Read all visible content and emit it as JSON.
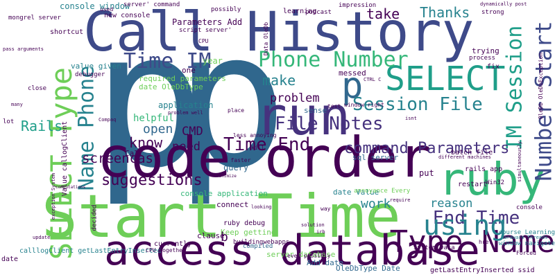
{
  "colors": {
    "background": "#ffffff"
  },
  "word_cloud": {
    "words": [
      {
        "text": "p",
        "weight": 1.0,
        "color": "#30678d"
      },
      {
        "text": "p",
        "weight": 1.0,
        "color": "#30678d"
      },
      {
        "text": "Call History",
        "weight": 0.52,
        "color": "#3e4a89"
      },
      {
        "text": "code order",
        "weight": 0.55,
        "color": "#440154"
      },
      {
        "text": "Start Time",
        "weight": 0.6,
        "color": "#6ece58"
      },
      {
        "text": "access database",
        "weight": 0.4,
        "color": "#440154"
      },
      {
        "text": "run",
        "weight": 0.5,
        "color": "#46327e"
      },
      {
        "text": "ruby",
        "weight": 0.42,
        "color": "#35b779"
      },
      {
        "text": "Type Name",
        "weight": 0.3,
        "color": "#440154"
      },
      {
        "text": "SELECT",
        "weight": 0.3,
        "color": "#1f9e89"
      },
      {
        "text": "SELECT Type",
        "weight": 0.27,
        "color": "#6ece58"
      },
      {
        "text": "Name Phone",
        "weight": 0.22,
        "color": "#26828e"
      },
      {
        "text": "Time IM",
        "weight": 0.2,
        "color": "#3e4a89"
      },
      {
        "text": "Phone Number",
        "weight": 0.2,
        "color": "#35b779"
      },
      {
        "text": "p",
        "weight": 0.28,
        "color": "#31688e"
      },
      {
        "text": "Number Start",
        "weight": 0.2,
        "color": "#3e4a89"
      },
      {
        "text": "IM Session",
        "weight": 0.18,
        "color": "#1f9e89"
      },
      {
        "text": "Session File",
        "weight": 0.17,
        "color": "#26828e"
      },
      {
        "text": "File Notes",
        "weight": 0.17,
        "color": "#46327e"
      },
      {
        "text": "Time End",
        "weight": 0.17,
        "color": "#440154"
      },
      {
        "text": "End Time",
        "weight": 0.15,
        "color": "#46327e"
      },
      {
        "text": "command Parameters",
        "weight": 0.13,
        "color": "#46327e"
      },
      {
        "text": "using",
        "weight": 0.2,
        "color": "#26828e"
      },
      {
        "text": "Rails",
        "weight": 0.12,
        "color": "#1f9e89"
      },
      {
        "text": "suggestions",
        "weight": 0.11,
        "color": "#440154"
      },
      {
        "text": "screencast",
        "weight": 0.1,
        "color": "#440154"
      },
      {
        "text": "problem",
        "weight": 0.1,
        "color": "#440154"
      },
      {
        "text": "take",
        "weight": 0.1,
        "color": "#440154"
      },
      {
        "text": "Thanks",
        "weight": 0.1,
        "color": "#26828e"
      },
      {
        "text": "make",
        "weight": 0.1,
        "color": "#26828e"
      },
      {
        "text": "know",
        "weight": 0.1,
        "color": "#440154"
      },
      {
        "text": "open",
        "weight": 0.1,
        "color": "#31688e"
      },
      {
        "text": "need",
        "weight": 0.09,
        "color": "#440154"
      },
      {
        "text": "CMD",
        "weight": 0.09,
        "color": "#440154"
      },
      {
        "text": "work",
        "weight": 0.09,
        "color": "#26828e"
      },
      {
        "text": "reason",
        "weight": 0.09,
        "color": "#26828e"
      },
      {
        "text": "Parameters Add",
        "weight": 0.06,
        "color": "#440154"
      },
      {
        "text": "console window",
        "weight": 0.05,
        "color": "#26828e"
      },
      {
        "text": "console application",
        "weight": 0.05,
        "color": "#35b779"
      },
      {
        "text": "sql server",
        "weight": 0.05,
        "color": "#31688e"
      },
      {
        "text": "server database",
        "weight": 0.05,
        "color": "#6ece58"
      },
      {
        "text": "OleDbType Date",
        "weight": 0.05,
        "color": "#31688e"
      },
      {
        "text": "getLastEntryInserted ssid",
        "weight": 0.05,
        "color": "#440154"
      },
      {
        "text": "calllogClient getLastEntryInserted",
        "weight": 0.05,
        "color": "#26828e"
      },
      {
        "text": "Value callogClient",
        "weight": 0.04,
        "color": "#440154"
      },
      {
        "text": "required parameters",
        "weight": 0.04,
        "color": "#6ece58"
      },
      {
        "text": "date OleDbType",
        "weight": 0.04,
        "color": "#6ece58"
      },
      {
        "text": "helpful",
        "weight": 0.05,
        "color": "#35b779"
      },
      {
        "text": "application",
        "weight": 0.05,
        "color": "#26828e"
      },
      {
        "text": "query",
        "weight": 0.05,
        "color": "#31688e"
      },
      {
        "text": "Keep getting",
        "weight": 0.05,
        "color": "#6ece58"
      },
      {
        "text": "Add date",
        "weight": 0.05,
        "color": "#31688e"
      },
      {
        "text": "date Value",
        "weight": 0.05,
        "color": "#26828e"
      },
      {
        "text": "System Data",
        "weight": 0.04,
        "color": "#440154"
      },
      {
        "text": "messed",
        "weight": 0.05,
        "color": "#440154"
      },
      {
        "text": "sense",
        "weight": 0.05,
        "color": "#31688e"
      },
      {
        "text": "clause",
        "weight": 0.05,
        "color": "#440154"
      },
      {
        "text": "b",
        "weight": 0.06,
        "color": "#440154"
      },
      {
        "text": "put",
        "weight": 0.05,
        "color": "#440154"
      },
      {
        "text": "year",
        "weight": 0.05,
        "color": "#6ece58"
      },
      {
        "text": "one",
        "weight": 0.05,
        "color": "#440154"
      },
      {
        "text": "trying",
        "weight": 0.05,
        "color": "#440154"
      },
      {
        "text": "fix",
        "weight": 0.04,
        "color": "#440154"
      },
      {
        "text": "Call",
        "weight": 0.04,
        "color": "#440154"
      },
      {
        "text": "connect",
        "weight": 0.04,
        "color": "#440154"
      },
      {
        "text": "restart",
        "weight": 0.04,
        "color": "#440154"
      },
      {
        "text": "value given",
        "weight": 0.04,
        "color": "#26828e"
      },
      {
        "text": "ruby debug",
        "weight": 0.03,
        "color": "#440154"
      },
      {
        "text": "rails app",
        "weight": 0.03,
        "color": "#440154"
      },
      {
        "text": "batch file",
        "weight": 0.03,
        "color": "#440154"
      },
      {
        "text": "console",
        "weight": 0.03,
        "color": "#440154"
      },
      {
        "text": "window navigate",
        "weight": 0.03,
        "color": "#26828e"
      },
      {
        "text": "Hardware Threads",
        "weight": 0.02,
        "color": "#26828e"
      },
      {
        "text": "course Learning",
        "weight": 0.03,
        "color": "#26828e"
      },
      {
        "text": "buildingwebapps",
        "weight": 0.03,
        "color": "#440154"
      },
      {
        "text": "compiled",
        "weight": 0.03,
        "color": "#31688e"
      },
      {
        "text": "currently",
        "weight": 0.03,
        "color": "#440154"
      },
      {
        "text": "decided",
        "weight": 0.03,
        "color": "#440154"
      },
      {
        "text": "Compaq",
        "weight": 0.02,
        "color": "#440154"
      },
      {
        "text": "update",
        "weight": 0.02,
        "color": "#440154"
      },
      {
        "text": "date",
        "weight": 0.03,
        "color": "#440154"
      },
      {
        "text": "shortcut",
        "weight": 0.03,
        "color": "#440154"
      },
      {
        "text": "close",
        "weight": 0.03,
        "color": "#440154"
      },
      {
        "text": "lot",
        "weight": 0.03,
        "color": "#440154"
      },
      {
        "text": "mongrel server",
        "weight": 0.03,
        "color": "#440154"
      },
      {
        "text": "new console",
        "weight": 0.03,
        "color": "#440154"
      },
      {
        "text": "server' command",
        "weight": 0.03,
        "color": "#440154"
      },
      {
        "text": "script server'",
        "weight": 0.03,
        "color": "#440154"
      },
      {
        "text": "learning",
        "weight": 0.03,
        "color": "#440154"
      },
      {
        "text": "impression",
        "weight": 0.03,
        "color": "#440154"
      },
      {
        "text": "podcast",
        "weight": 0.03,
        "color": "#440154"
      },
      {
        "text": "strong",
        "weight": 0.03,
        "color": "#440154"
      },
      {
        "text": "process",
        "weight": 0.03,
        "color": "#440154"
      },
      {
        "text": "possibly",
        "weight": 0.03,
        "color": "#440154"
      },
      {
        "text": "Win32",
        "weight": 0.03,
        "color": "#440154"
      },
      {
        "text": "debugger",
        "weight": 0.03,
        "color": "#440154"
      },
      {
        "text": "place",
        "weight": 0.03,
        "color": "#440154"
      },
      {
        "text": "annoyance Every",
        "weight": 0.03,
        "color": "#6ece58"
      },
      {
        "text": "less annoying",
        "weight": 0.03,
        "color": "#440154"
      },
      {
        "text": "process faster",
        "weight": 0.03,
        "color": "#440154"
      },
      {
        "text": "even possibly",
        "weight": 0.03,
        "color": "#440154"
      },
      {
        "text": "window right",
        "weight": 0.03,
        "color": "#440154"
      },
      {
        "text": "Data OleDb",
        "weight": 0.03,
        "color": "#440154"
      },
      {
        "text": "OleDb OleDbException",
        "weight": 0.03,
        "color": "#440154"
      },
      {
        "text": "simultaneously",
        "weight": 0.02,
        "color": "#440154"
      },
      {
        "text": "different machines",
        "weight": 0.02,
        "color": "#440154"
      },
      {
        "text": "problem well",
        "weight": 0.02,
        "color": "#440154"
      },
      {
        "text": "CPU together",
        "weight": 0.02,
        "color": "#440154"
      },
      {
        "text": "exception System",
        "weight": 0.02,
        "color": "#440154"
      },
      {
        "text": "used",
        "weight": 0.03,
        "color": "#440154"
      },
      {
        "text": "pass arguments",
        "weight": 0.02,
        "color": "#440154"
      },
      {
        "text": "computations",
        "weight": 0.02,
        "color": "#440154"
      },
      {
        "text": "solution",
        "weight": 0.02,
        "color": "#440154"
      },
      {
        "text": "minimize",
        "weight": 0.02,
        "color": "#440154"
      },
      {
        "text": "CTRL C",
        "weight": 0.02,
        "color": "#440154"
      },
      {
        "text": "isnt",
        "weight": 0.02,
        "color": "#440154"
      },
      {
        "text": "way",
        "weight": 0.02,
        "color": "#440154"
      },
      {
        "text": "test",
        "weight": 0.02,
        "color": "#440154"
      },
      {
        "text": "looking",
        "weight": 0.02,
        "color": "#440154"
      },
      {
        "text": "kill",
        "weight": 0.02,
        "color": "#440154"
      },
      {
        "text": "CPU",
        "weight": 0.02,
        "color": "#440154"
      },
      {
        "text": "require",
        "weight": 0.02,
        "color": "#440154"
      },
      {
        "text": "irb",
        "weight": 0.02,
        "color": "#440154"
      },
      {
        "text": "Forced",
        "weight": 0.02,
        "color": "#440154"
      },
      {
        "text": "href",
        "weight": 0.02,
        "color": "#440154"
      },
      {
        "text": "many",
        "weight": 0.02,
        "color": "#440154"
      },
      {
        "text": "dynamically post",
        "weight": 0.02,
        "color": "#440154"
      }
    ]
  }
}
